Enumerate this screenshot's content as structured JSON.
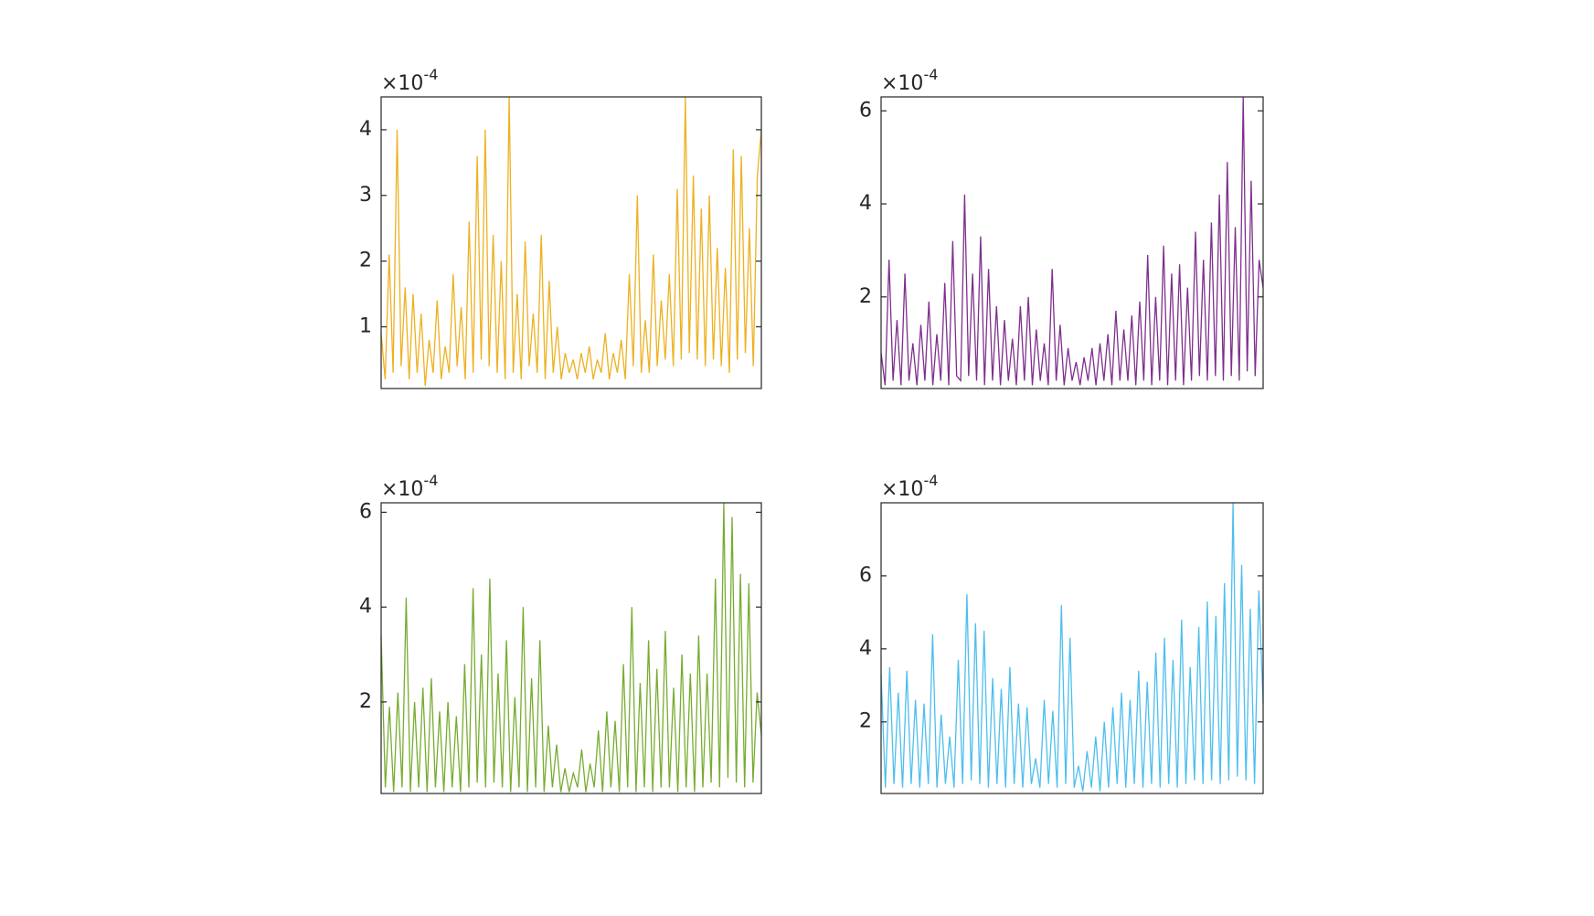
{
  "chart_data": [
    {
      "type": "line",
      "color": "#EDB120",
      "y_multiplier": "×10",
      "y_exponent": "-4",
      "ylim": [
        0.06,
        4.5
      ],
      "yticks": [
        1,
        2,
        3,
        4
      ],
      "values": [
        0.9,
        0.2,
        2.1,
        0.3,
        4.0,
        0.4,
        1.6,
        0.2,
        1.5,
        0.3,
        1.2,
        0.1,
        0.8,
        0.3,
        1.4,
        0.2,
        0.7,
        0.3,
        1.8,
        0.4,
        1.3,
        0.2,
        2.6,
        0.3,
        3.6,
        0.5,
        4.0,
        0.4,
        2.4,
        0.3,
        2.0,
        0.2,
        4.5,
        0.3,
        1.5,
        0.2,
        2.3,
        0.4,
        1.2,
        0.3,
        2.4,
        0.2,
        1.7,
        0.3,
        1.0,
        0.2,
        0.6,
        0.3,
        0.5,
        0.2,
        0.6,
        0.3,
        0.7,
        0.2,
        0.5,
        0.3,
        0.9,
        0.2,
        0.6,
        0.3,
        0.8,
        0.2,
        1.8,
        0.4,
        3.0,
        0.3,
        1.1,
        0.3,
        2.1,
        0.4,
        1.4,
        0.5,
        1.8,
        0.4,
        3.1,
        0.5,
        4.5,
        0.6,
        3.3,
        0.5,
        2.8,
        0.4,
        3.0,
        0.5,
        2.2,
        0.4,
        1.9,
        0.3,
        3.7,
        0.5,
        3.6,
        0.6,
        2.5,
        0.4,
        3.3,
        4.0
      ]
    },
    {
      "type": "line",
      "color": "#7E2F8E",
      "y_multiplier": "×10",
      "y_exponent": "-4",
      "ylim": [
        0.03,
        6.3
      ],
      "yticks": [
        2,
        4,
        6
      ],
      "values": [
        0.8,
        0.1,
        2.8,
        0.2,
        1.5,
        0.1,
        2.5,
        0.2,
        1.0,
        0.1,
        1.4,
        0.2,
        1.9,
        0.1,
        1.2,
        0.2,
        2.3,
        0.1,
        3.2,
        0.3,
        0.2,
        4.2,
        0.3,
        2.5,
        0.2,
        3.3,
        0.1,
        2.6,
        0.2,
        1.8,
        0.1,
        1.5,
        0.2,
        1.1,
        0.1,
        1.8,
        0.2,
        2.0,
        0.1,
        1.3,
        0.2,
        1.0,
        0.1,
        2.6,
        0.2,
        1.4,
        0.1,
        0.9,
        0.2,
        0.6,
        0.1,
        0.7,
        0.2,
        0.9,
        0.1,
        1.0,
        0.2,
        1.2,
        0.1,
        1.7,
        0.2,
        1.3,
        0.2,
        1.6,
        0.1,
        1.9,
        0.2,
        2.9,
        0.1,
        2.0,
        0.2,
        3.1,
        0.1,
        2.5,
        0.2,
        2.7,
        0.1,
        2.2,
        0.2,
        3.4,
        0.3,
        2.8,
        0.2,
        3.6,
        0.3,
        4.2,
        0.2,
        4.9,
        0.3,
        3.5,
        0.2,
        6.3,
        0.4,
        4.5,
        0.3,
        2.8,
        2.2
      ]
    },
    {
      "type": "line",
      "color": "#77AC30",
      "y_multiplier": "×10",
      "y_exponent": "-4",
      "ylim": [
        0.07,
        6.2
      ],
      "yticks": [
        2,
        4,
        6
      ],
      "values": [
        3.4,
        0.2,
        1.9,
        0.1,
        2.2,
        0.2,
        4.2,
        0.1,
        2.0,
        0.2,
        2.3,
        0.1,
        2.5,
        0.2,
        1.8,
        0.1,
        2.0,
        0.2,
        1.7,
        0.1,
        2.8,
        0.2,
        4.4,
        0.3,
        3.0,
        0.2,
        4.6,
        0.3,
        2.6,
        0.2,
        3.3,
        0.1,
        2.1,
        0.2,
        4.0,
        0.1,
        2.5,
        0.2,
        3.3,
        0.1,
        1.5,
        0.2,
        1.1,
        0.1,
        0.6,
        0.1,
        0.5,
        0.2,
        1.0,
        0.1,
        0.7,
        0.2,
        1.4,
        0.1,
        1.8,
        0.2,
        1.6,
        0.1,
        2.8,
        0.2,
        4.0,
        0.1,
        2.4,
        0.2,
        3.3,
        0.1,
        2.7,
        0.2,
        3.5,
        0.2,
        2.3,
        0.1,
        3.0,
        0.2,
        2.6,
        0.1,
        3.4,
        0.2,
        2.6,
        0.3,
        4.6,
        0.2,
        6.2,
        0.4,
        5.9,
        0.3,
        4.7,
        0.2,
        4.5,
        0.3,
        2.2,
        1.3
      ]
    },
    {
      "type": "line",
      "color": "#4DBEEE",
      "y_multiplier": "×10",
      "y_exponent": "-4",
      "ylim": [
        0.04,
        8.0
      ],
      "yticks": [
        2,
        4,
        6
      ],
      "values": [
        3.3,
        0.2,
        3.5,
        0.3,
        2.8,
        0.2,
        3.4,
        0.3,
        2.6,
        0.2,
        2.5,
        0.3,
        4.4,
        0.2,
        2.2,
        0.3,
        1.6,
        0.2,
        3.7,
        0.3,
        5.5,
        0.4,
        4.7,
        0.3,
        4.5,
        0.2,
        3.2,
        0.3,
        2.9,
        0.2,
        3.5,
        0.3,
        2.5,
        0.2,
        2.4,
        0.3,
        1.0,
        0.2,
        2.6,
        0.3,
        2.3,
        0.2,
        5.2,
        0.3,
        4.3,
        0.2,
        0.8,
        0.1,
        1.2,
        0.2,
        1.6,
        0.1,
        2.0,
        0.2,
        2.4,
        0.3,
        2.8,
        0.2,
        2.6,
        0.3,
        3.4,
        0.2,
        3.1,
        0.3,
        3.9,
        0.2,
        4.3,
        0.3,
        3.7,
        0.2,
        4.8,
        0.3,
        3.5,
        0.4,
        4.6,
        0.3,
        5.3,
        0.4,
        4.9,
        0.3,
        5.8,
        0.4,
        8.0,
        0.5,
        6.3,
        0.4,
        5.1,
        0.3,
        5.6,
        2.5
      ]
    }
  ]
}
